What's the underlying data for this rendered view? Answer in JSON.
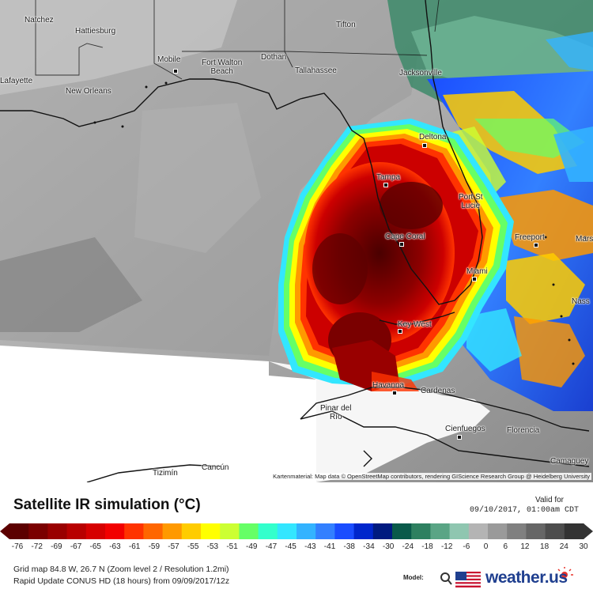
{
  "map": {
    "cities": [
      {
        "name": "Natchez"
      },
      {
        "name": "Hattiesburg"
      },
      {
        "name": "Dothan"
      },
      {
        "name": "Tifton"
      },
      {
        "name": "Mobile"
      },
      {
        "name": "Fort Walton\nBeach"
      },
      {
        "name": "Tallahassee"
      },
      {
        "name": "Jacksonville"
      },
      {
        "name": "Lafayette"
      },
      {
        "name": "New Orleans"
      },
      {
        "name": "Deltona"
      },
      {
        "name": "Tampa"
      },
      {
        "name": "Port St\nLucie"
      },
      {
        "name": "Cape Coral"
      },
      {
        "name": "Freeport"
      },
      {
        "name": "Marsh"
      },
      {
        "name": "Miami"
      },
      {
        "name": "Nass"
      },
      {
        "name": "Key West"
      },
      {
        "name": "Havanna"
      },
      {
        "name": "Cardenas"
      },
      {
        "name": "Pinar del\nRío"
      },
      {
        "name": "Cienfuegos"
      },
      {
        "name": "Florencia"
      },
      {
        "name": "Camaguey"
      },
      {
        "name": "Cancún"
      },
      {
        "name": "Tizimín"
      }
    ],
    "attribution": "Kartenmaterial: Map data © OpenStreetMap contributors, rendering GIScience Research Group @ Heidelberg University"
  },
  "footer": {
    "title": "Satellite IR simulation (°C)",
    "valid_label": "Valid for",
    "valid_time": "09/10/2017, 01:00am CDT",
    "grid_info": "Grid map 84.8 W, 26.7 N (Zoom level 2 / Resolution 1.2mi)",
    "run_info": "Rapid Update CONUS HD (18 hours) from 09/09/2017/12z",
    "model_label": "Model:",
    "brand_name": "weather.us"
  },
  "colorbar": {
    "ticks": [
      "-76",
      "-72",
      "-69",
      "-67",
      "-65",
      "-63",
      "-61",
      "-59",
      "-57",
      "-55",
      "-53",
      "-51",
      "-49",
      "-47",
      "-45",
      "-43",
      "-41",
      "-38",
      "-34",
      "-30",
      "-24",
      "-18",
      "-12",
      "-6",
      "0",
      "6",
      "12",
      "18",
      "24",
      "30"
    ],
    "colors": [
      "#5c0000",
      "#7a0000",
      "#990000",
      "#b80000",
      "#d60000",
      "#f20000",
      "#ff3300",
      "#ff6600",
      "#ff9900",
      "#ffcc00",
      "#ffff00",
      "#ccff33",
      "#66ff66",
      "#33ffcc",
      "#33e6ff",
      "#33b3ff",
      "#3380ff",
      "#1a4dff",
      "#0026cc",
      "#001a80",
      "#0a5a4a",
      "#2e8060",
      "#5aa585",
      "#8fc6b0",
      "#b4b4b4",
      "#9a9a9a",
      "#808080",
      "#666666",
      "#4d4d4d",
      "#333333"
    ]
  }
}
